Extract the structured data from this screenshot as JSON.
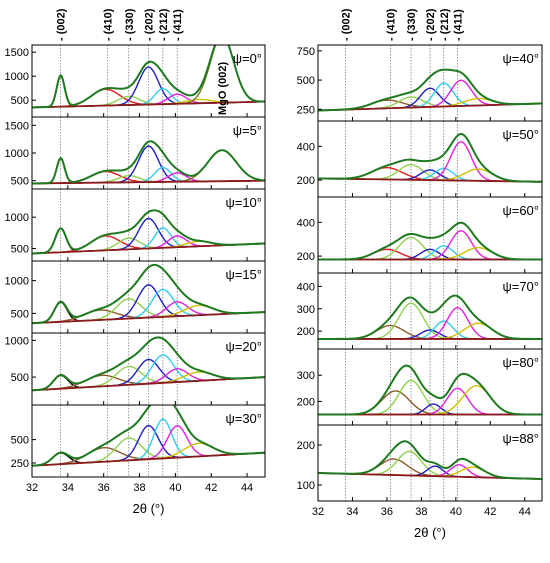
{
  "chart_data": {
    "type": "line",
    "x_label": "2θ (°)",
    "x_range": [
      32,
      45
    ],
    "x_ticks": [
      32,
      34,
      36,
      38,
      40,
      42,
      44
    ],
    "peak_labels": [
      {
        "label": "(002)",
        "x": 33.6
      },
      {
        "label": "(410)",
        "x": 36.2
      },
      {
        "label": "(330)",
        "x": 37.4
      },
      {
        "label": "(202)",
        "x": 38.5
      },
      {
        "label": "(212)",
        "x": 39.3
      },
      {
        "label": "(411)",
        "x": 40.1
      }
    ],
    "component_colors": {
      "sum": "#1e7a1e",
      "background": "#8b1a1a",
      "p002": "#000000",
      "p410": "#e31a1c",
      "p330": "#8fd14f",
      "p202": "#1f1fbf",
      "p212": "#33ccee",
      "p411": "#e020e0",
      "p_a": "#d0c000",
      "p_b": "#8b5a2b",
      "mgo": "#7a7a1e"
    },
    "panels": [
      {
        "column": "left",
        "psi": "ψ=0°",
        "yticks": [
          500,
          1000,
          1500
        ],
        "ylim": [
          150,
          1650
        ],
        "bg": [
          350,
          470
        ],
        "mgo_label": "MgO (002)",
        "peaks": [
          {
            "c": "p002",
            "x0": 33.6,
            "w": 0.22,
            "h": 650,
            "tall": true
          },
          {
            "c": "p410",
            "x0": 36.1,
            "w": 0.8,
            "h": 340
          },
          {
            "c": "p330",
            "x0": 37.4,
            "w": 0.6,
            "h": 180
          },
          {
            "c": "p202",
            "x0": 38.5,
            "w": 0.55,
            "h": 780
          },
          {
            "c": "p212",
            "x0": 39.3,
            "w": 0.45,
            "h": 320
          },
          {
            "c": "p411",
            "x0": 40.1,
            "w": 0.5,
            "h": 200
          },
          {
            "c": "p_a",
            "x0": 41.3,
            "w": 0.7,
            "h": 80
          },
          {
            "c": "mgo",
            "x0": 42.6,
            "w": 0.65,
            "h": 1400
          }
        ]
      },
      {
        "column": "left",
        "psi": "ψ=5°",
        "yticks": [
          500,
          1000,
          1500
        ],
        "ylim": [
          350,
          1650
        ],
        "bg": [
          450,
          500
        ],
        "peaks": [
          {
            "c": "p002",
            "x0": 33.6,
            "w": 0.22,
            "h": 450,
            "tall": true
          },
          {
            "c": "p410",
            "x0": 36.1,
            "w": 0.8,
            "h": 200
          },
          {
            "c": "p330",
            "x0": 37.4,
            "w": 0.6,
            "h": 120
          },
          {
            "c": "p202",
            "x0": 38.5,
            "w": 0.55,
            "h": 650
          },
          {
            "c": "p212",
            "x0": 39.3,
            "w": 0.45,
            "h": 260
          },
          {
            "c": "p411",
            "x0": 40.1,
            "w": 0.5,
            "h": 160
          },
          {
            "c": "mgo",
            "x0": 42.6,
            "w": 0.8,
            "h": 560
          }
        ]
      },
      {
        "column": "left",
        "psi": "ψ=10°",
        "yticks": [
          500,
          1000
        ],
        "ylim": [
          300,
          1450
        ],
        "bg": [
          420,
          580
        ],
        "peaks": [
          {
            "c": "p002",
            "x0": 33.6,
            "w": 0.3,
            "h": 380
          },
          {
            "c": "p410",
            "x0": 36.1,
            "w": 0.8,
            "h": 230
          },
          {
            "c": "p330",
            "x0": 37.4,
            "w": 0.6,
            "h": 180
          },
          {
            "c": "p202",
            "x0": 38.5,
            "w": 0.55,
            "h": 480
          },
          {
            "c": "p212",
            "x0": 39.3,
            "w": 0.45,
            "h": 320
          },
          {
            "c": "p411",
            "x0": 40.1,
            "w": 0.5,
            "h": 180
          },
          {
            "c": "p_a",
            "x0": 41.3,
            "w": 0.7,
            "h": 80
          }
        ]
      },
      {
        "column": "left",
        "psi": "ψ=15°",
        "yticks": [
          500,
          1000
        ],
        "ylim": [
          200,
          1300
        ],
        "bg": [
          350,
          520
        ],
        "peaks": [
          {
            "c": "p002",
            "x0": 33.6,
            "w": 0.35,
            "h": 300
          },
          {
            "c": "p_b",
            "x0": 35.8,
            "w": 0.9,
            "h": 150
          },
          {
            "c": "p330",
            "x0": 37.4,
            "w": 0.7,
            "h": 300
          },
          {
            "c": "p202",
            "x0": 38.5,
            "w": 0.6,
            "h": 500
          },
          {
            "c": "p212",
            "x0": 39.3,
            "w": 0.6,
            "h": 420
          },
          {
            "c": "p411",
            "x0": 40.1,
            "w": 0.6,
            "h": 220
          },
          {
            "c": "p_a",
            "x0": 41.3,
            "w": 0.8,
            "h": 150
          }
        ]
      },
      {
        "column": "left",
        "psi": "ψ=20°",
        "yticks": [
          500,
          1000
        ],
        "ylim": [
          120,
          1100
        ],
        "bg": [
          320,
          500
        ],
        "peaks": [
          {
            "c": "p002",
            "x0": 33.6,
            "w": 0.4,
            "h": 180
          },
          {
            "c": "p_b",
            "x0": 35.9,
            "w": 0.9,
            "h": 150
          },
          {
            "c": "p330",
            "x0": 37.4,
            "w": 0.7,
            "h": 250
          },
          {
            "c": "p202",
            "x0": 38.5,
            "w": 0.6,
            "h": 330
          },
          {
            "c": "p212",
            "x0": 39.3,
            "w": 0.6,
            "h": 380
          },
          {
            "c": "p411",
            "x0": 40.1,
            "w": 0.6,
            "h": 180
          },
          {
            "c": "p_a",
            "x0": 41.3,
            "w": 0.8,
            "h": 120
          }
        ]
      },
      {
        "column": "left",
        "psi": "ψ=30°",
        "yticks": [
          250,
          500
        ],
        "ylim": [
          100,
          870
        ],
        "bg": [
          220,
          360
        ],
        "peaks": [
          {
            "c": "p002",
            "x0": 33.6,
            "w": 0.45,
            "h": 120
          },
          {
            "c": "p_b",
            "x0": 36.0,
            "w": 0.9,
            "h": 150
          },
          {
            "c": "p330",
            "x0": 37.4,
            "w": 0.7,
            "h": 240
          },
          {
            "c": "p202",
            "x0": 38.5,
            "w": 0.55,
            "h": 360
          },
          {
            "c": "p212",
            "x0": 39.3,
            "w": 0.5,
            "h": 420
          },
          {
            "c": "p411",
            "x0": 40.1,
            "w": 0.55,
            "h": 340
          },
          {
            "c": "p_a",
            "x0": 41.3,
            "w": 0.8,
            "h": 140
          }
        ]
      },
      {
        "column": "right",
        "psi": "ψ=40°",
        "yticks": [
          250,
          500,
          750
        ],
        "ylim": [
          150,
          800
        ],
        "bg": [
          240,
          300
        ],
        "peaks": [
          {
            "c": "p_b",
            "x0": 36.0,
            "w": 0.9,
            "h": 70
          },
          {
            "c": "p330",
            "x0": 37.4,
            "w": 0.7,
            "h": 90
          },
          {
            "c": "p202",
            "x0": 38.5,
            "w": 0.55,
            "h": 160
          },
          {
            "c": "p212",
            "x0": 39.3,
            "w": 0.55,
            "h": 200
          },
          {
            "c": "p411",
            "x0": 40.3,
            "w": 0.6,
            "h": 220
          },
          {
            "c": "p_a",
            "x0": 41.3,
            "w": 0.8,
            "h": 60
          }
        ]
      },
      {
        "column": "right",
        "psi": "ψ=50°",
        "yticks": [
          200,
          400
        ],
        "ylim": [
          100,
          550
        ],
        "bg": [
          210,
          190
        ],
        "peaks": [
          {
            "c": "p410",
            "x0": 36.0,
            "w": 0.9,
            "h": 70
          },
          {
            "c": "p330",
            "x0": 37.4,
            "w": 0.7,
            "h": 90
          },
          {
            "c": "p202",
            "x0": 38.5,
            "w": 0.55,
            "h": 60
          },
          {
            "c": "p212",
            "x0": 39.3,
            "w": 0.55,
            "h": 70
          },
          {
            "c": "p411",
            "x0": 40.3,
            "w": 0.6,
            "h": 230
          },
          {
            "c": "p_a",
            "x0": 41.3,
            "w": 0.8,
            "h": 70
          }
        ]
      },
      {
        "column": "right",
        "psi": "ψ=60°",
        "yticks": [
          200,
          400
        ],
        "ylim": [
          100,
          550
        ],
        "bg": [
          180,
          180
        ],
        "peaks": [
          {
            "c": "p410",
            "x0": 36.0,
            "w": 0.8,
            "h": 60
          },
          {
            "c": "p330",
            "x0": 37.4,
            "w": 0.7,
            "h": 130
          },
          {
            "c": "p202",
            "x0": 38.5,
            "w": 0.55,
            "h": 60
          },
          {
            "c": "p212",
            "x0": 39.3,
            "w": 0.55,
            "h": 80
          },
          {
            "c": "p411",
            "x0": 40.3,
            "w": 0.6,
            "h": 170
          },
          {
            "c": "p_a",
            "x0": 41.3,
            "w": 0.8,
            "h": 70
          }
        ]
      },
      {
        "column": "right",
        "psi": "ψ=70°",
        "yticks": [
          200,
          300,
          400
        ],
        "ylim": [
          120,
          460
        ],
        "bg": [
          165,
          165
        ],
        "peaks": [
          {
            "c": "p_b",
            "x0": 36.2,
            "w": 0.8,
            "h": 60
          },
          {
            "c": "p330",
            "x0": 37.4,
            "w": 0.7,
            "h": 160
          },
          {
            "c": "p202",
            "x0": 38.5,
            "w": 0.55,
            "h": 40
          },
          {
            "c": "p212",
            "x0": 39.3,
            "w": 0.55,
            "h": 80
          },
          {
            "c": "p411",
            "x0": 40.1,
            "w": 0.6,
            "h": 140
          },
          {
            "c": "p_a",
            "x0": 41.3,
            "w": 0.8,
            "h": 70
          }
        ]
      },
      {
        "column": "right",
        "psi": "ψ=80°",
        "yticks": [
          200,
          300
        ],
        "ylim": [
          110,
          400
        ],
        "bg": [
          150,
          150
        ],
        "peaks": [
          {
            "c": "p_b",
            "x0": 36.5,
            "w": 0.8,
            "h": 90
          },
          {
            "c": "p330",
            "x0": 37.4,
            "w": 0.7,
            "h": 130
          },
          {
            "c": "p202",
            "x0": 38.7,
            "w": 0.45,
            "h": 40
          },
          {
            "c": "p411",
            "x0": 40.1,
            "w": 0.6,
            "h": 100
          },
          {
            "c": "p_a",
            "x0": 41.2,
            "w": 0.8,
            "h": 110
          }
        ]
      },
      {
        "column": "right",
        "psi": "ψ=88°",
        "yticks": [
          100,
          200
        ],
        "ylim": [
          60,
          250
        ],
        "bg": [
          130,
          115
        ],
        "peaks": [
          {
            "c": "p_b",
            "x0": 36.4,
            "w": 0.8,
            "h": 40
          },
          {
            "c": "p330",
            "x0": 37.3,
            "w": 0.7,
            "h": 60
          },
          {
            "c": "p202",
            "x0": 38.8,
            "w": 0.45,
            "h": 25
          },
          {
            "c": "p411",
            "x0": 40.2,
            "w": 0.5,
            "h": 30
          },
          {
            "c": "p_a",
            "x0": 41.0,
            "w": 0.7,
            "h": 25
          }
        ]
      }
    ]
  }
}
